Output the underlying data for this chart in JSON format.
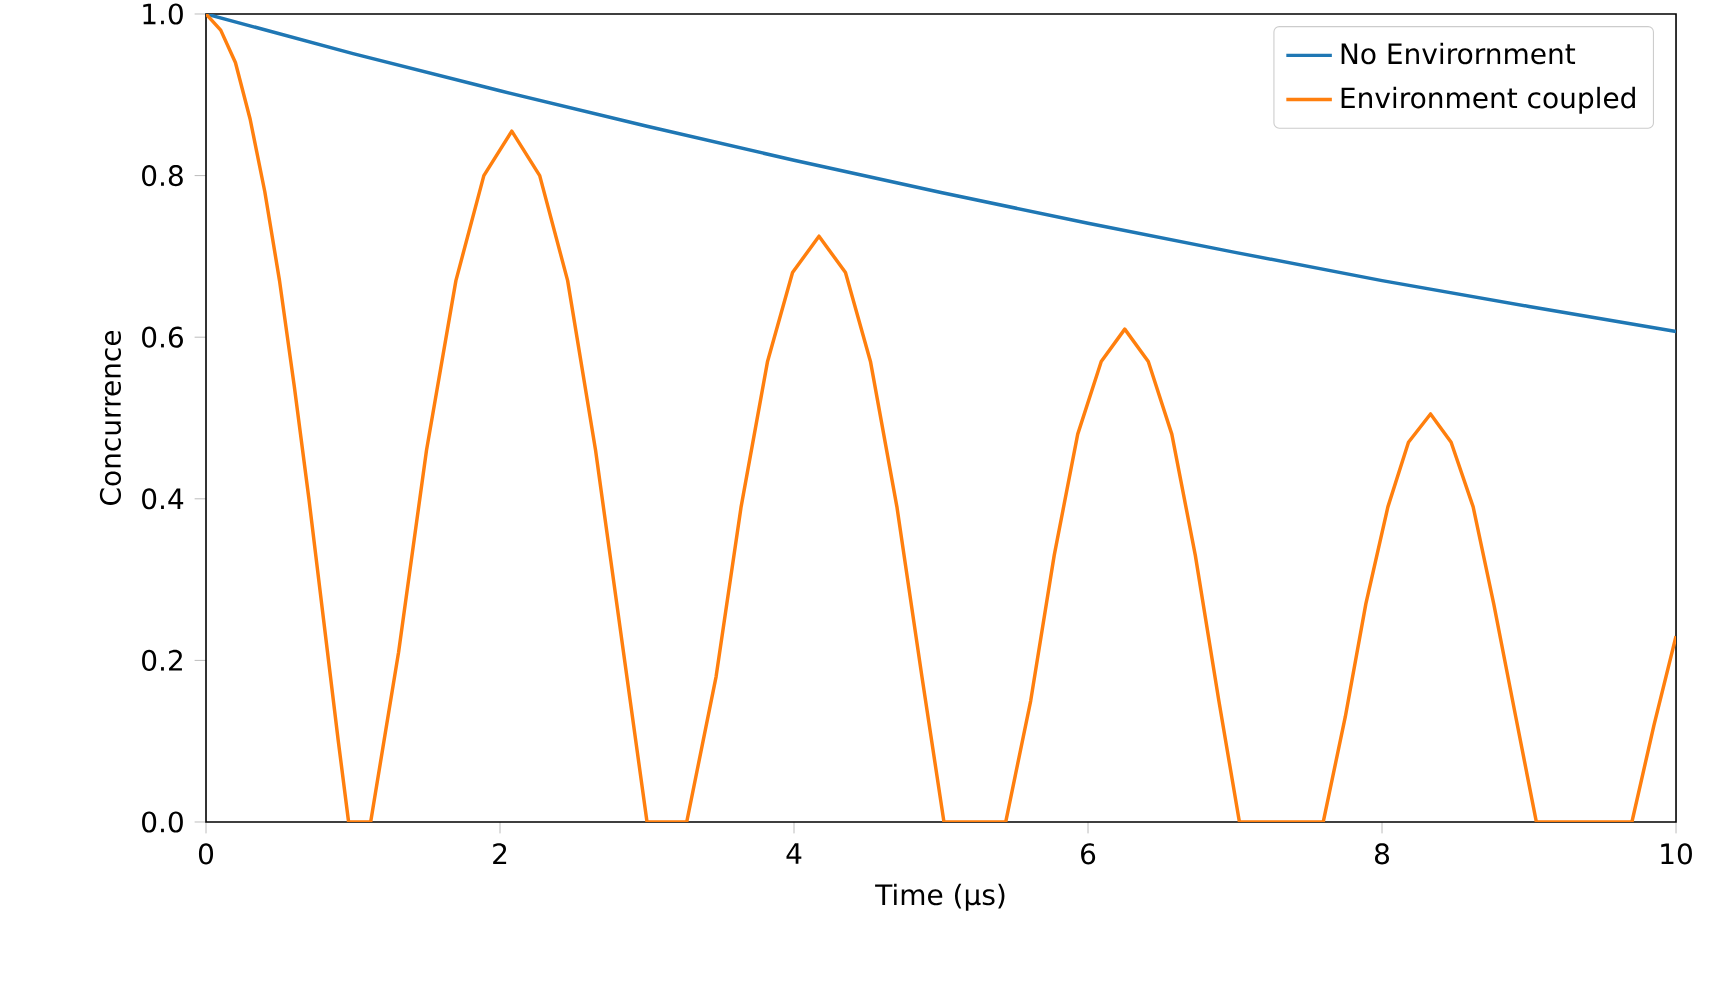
{
  "chart_data": {
    "type": "line",
    "xlabel": "Time (μs)",
    "ylabel": "Concurrence",
    "xlim": [
      0,
      10
    ],
    "ylim": [
      0,
      1
    ],
    "xticks": [
      0,
      2,
      4,
      6,
      8,
      10
    ],
    "yticks": [
      {
        "value": 0,
        "label": "0.0"
      },
      {
        "value": 0.2,
        "label": "0.2"
      },
      {
        "value": 0.4,
        "label": "0.4"
      },
      {
        "value": 0.6,
        "label": "0.6"
      },
      {
        "value": 0.8,
        "label": "0.8"
      },
      {
        "value": 1,
        "label": "1.0"
      }
    ],
    "legend": "top right",
    "marker": "none",
    "line_style": "solid",
    "series": [
      {
        "name": "No Envirornment",
        "color": "#1f77b4",
        "x": [
          0,
          1,
          2,
          3,
          4,
          5,
          6,
          7,
          8,
          9,
          10
        ],
        "values": [
          1.0,
          0.951,
          0.905,
          0.861,
          0.819,
          0.779,
          0.741,
          0.705,
          0.67,
          0.638,
          0.607
        ]
      },
      {
        "name": "Environment coupled",
        "color": "#ff7f0e",
        "x": [
          0,
          0.1,
          0.2,
          0.3,
          0.4,
          0.5,
          0.6,
          0.7,
          0.8,
          0.9,
          0.97,
          1.12,
          1.31,
          1.5,
          1.7,
          1.89,
          2.08,
          2.27,
          2.46,
          2.65,
          2.84,
          3.0,
          3.27,
          3.47,
          3.64,
          3.82,
          3.99,
          4.17,
          4.35,
          4.52,
          4.7,
          4.87,
          5.02,
          5.44,
          5.61,
          5.77,
          5.93,
          6.09,
          6.25,
          6.41,
          6.57,
          6.73,
          6.89,
          7.03,
          7.6,
          7.75,
          7.89,
          8.04,
          8.18,
          8.33,
          8.47,
          8.62,
          8.76,
          8.91,
          9.05,
          9.7,
          9.85,
          10
        ],
        "values": [
          1.0,
          0.98,
          0.94,
          0.87,
          0.78,
          0.67,
          0.54,
          0.4,
          0.25,
          0.1,
          0,
          0,
          0.21,
          0.46,
          0.67,
          0.8,
          0.855,
          0.8,
          0.67,
          0.46,
          0.21,
          0,
          0,
          0.18,
          0.39,
          0.57,
          0.68,
          0.725,
          0.68,
          0.57,
          0.39,
          0.18,
          0,
          0,
          0.15,
          0.33,
          0.48,
          0.57,
          0.61,
          0.57,
          0.48,
          0.33,
          0.15,
          0,
          0,
          0.13,
          0.27,
          0.39,
          0.47,
          0.505,
          0.47,
          0.39,
          0.27,
          0.13,
          0,
          0,
          0.12,
          0.23
        ]
      }
    ]
  }
}
